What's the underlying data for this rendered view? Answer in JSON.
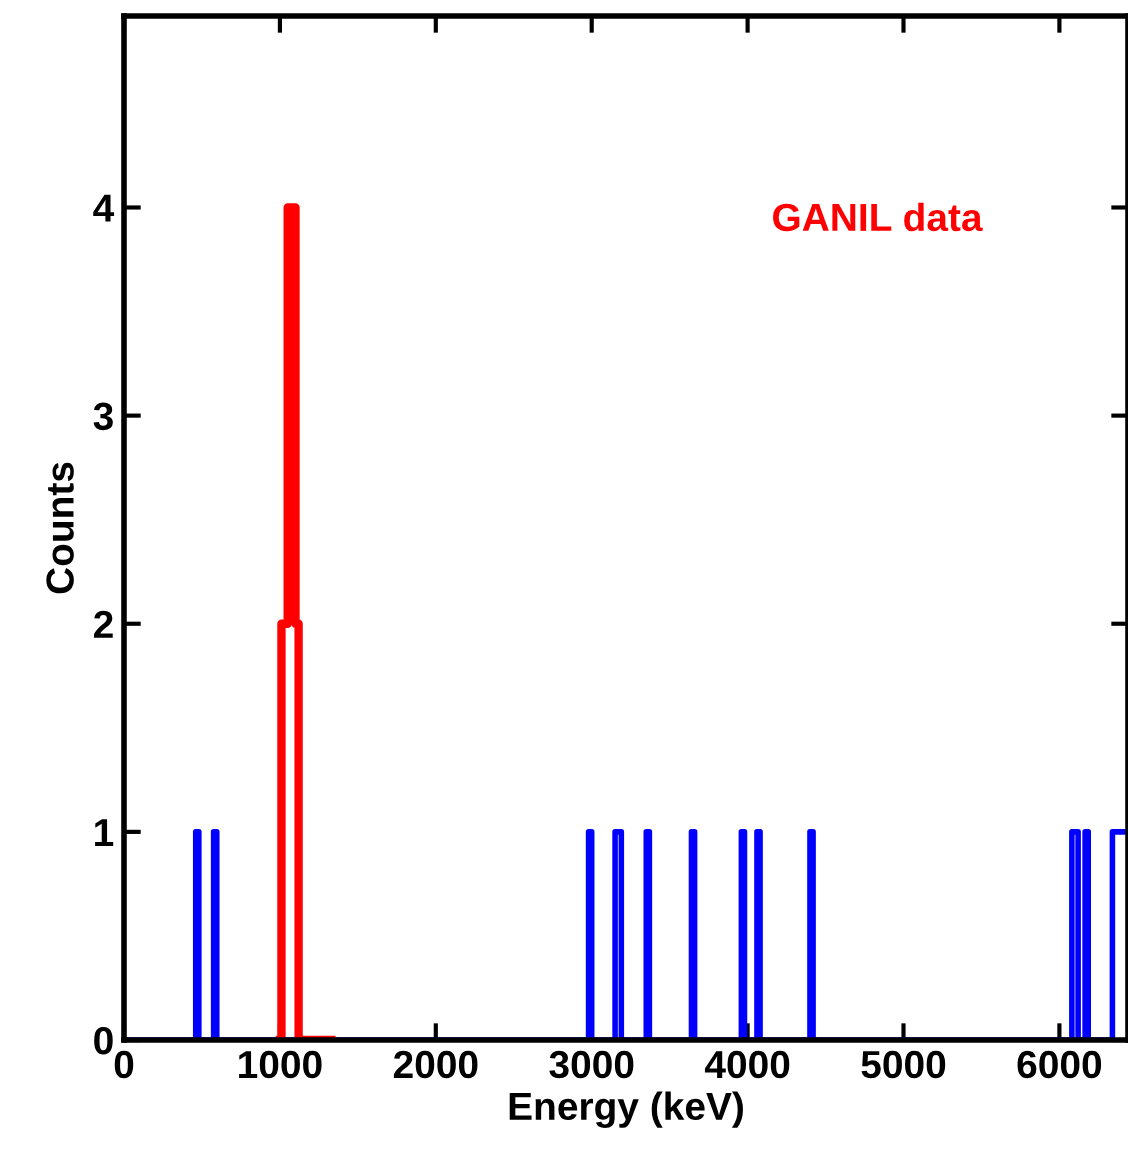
{
  "chart_data": {
    "type": "step",
    "xlabel": "Energy (keV)",
    "ylabel": "Counts",
    "series": [
      {
        "color": "#0000ff",
        "x": [
          0,
          460,
          480,
          575,
          595,
          2980,
          3000,
          3150,
          3190,
          3350,
          3370,
          3640,
          3660,
          3960,
          3980,
          4060,
          4080,
          4400,
          4420,
          6080,
          6120,
          6165,
          6185,
          6340,
          6440
        ],
        "values": [
          0,
          1,
          0,
          1,
          0,
          1,
          0,
          1,
          0,
          1,
          0,
          1,
          0,
          1,
          0,
          1,
          0,
          1,
          0,
          1,
          0,
          1,
          0,
          1,
          1
        ]
      },
      {
        "name": "GANIL data",
        "color": "#ff0000",
        "x": [
          1000,
          1010,
          1050,
          1100,
          1120,
          1330
        ],
        "values": [
          0,
          2,
          4,
          2,
          0,
          0
        ]
      }
    ],
    "xlim": [
      0,
      6440
    ],
    "ylim": [
      0,
      4.92
    ],
    "xticks": [
      0,
      1000,
      2000,
      3000,
      4000,
      5000,
      6000
    ],
    "yticks": [
      0,
      1,
      2,
      3,
      4
    ],
    "grid": false,
    "legend": false
  }
}
